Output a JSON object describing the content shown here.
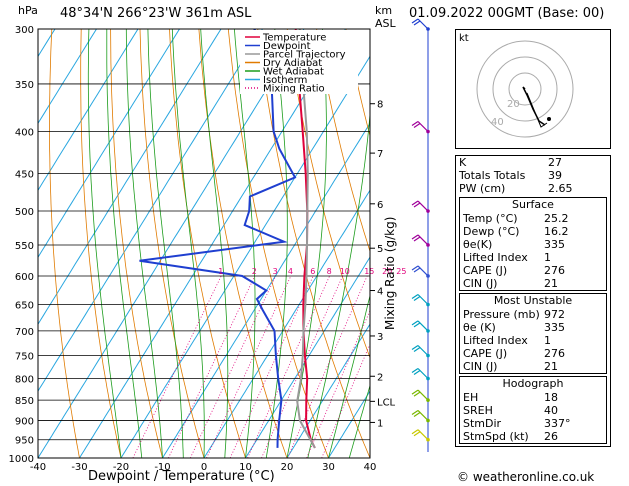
{
  "header": {
    "coords": "48°34'N  266°23'W  361m  ASL",
    "date": "01.09.2022  00GMT  (Base: 00)",
    "hpa_label": "hPa",
    "km_label_top": "km",
    "km_label_bottom": "ASL"
  },
  "chart_data": {
    "type": "line",
    "xlabel": "Dewpoint / Temperature (°C)",
    "ylabel_right": "Mixing Ratio (g/kg)",
    "ylabel_left": "hPa",
    "pressure_ticks": [
      300,
      350,
      400,
      450,
      500,
      550,
      600,
      650,
      700,
      750,
      800,
      850,
      900,
      950,
      1000
    ],
    "temperature_ticks": [
      -40,
      -30,
      -20,
      -10,
      0,
      10,
      20,
      30,
      40
    ],
    "xlim": [
      -40,
      40
    ],
    "ylim": [
      1000,
      300
    ],
    "km_ticks": [
      {
        "label": "8",
        "p": 370
      },
      {
        "label": "7",
        "p": 425
      },
      {
        "label": "6",
        "p": 490
      },
      {
        "label": "5",
        "p": 555
      },
      {
        "label": "4",
        "p": 625
      },
      {
        "label": "3",
        "p": 710
      },
      {
        "label": "2",
        "p": 795
      },
      {
        "label": "LCL",
        "p": 853
      },
      {
        "label": "1",
        "p": 905
      }
    ],
    "mixing_ratio_labels": [
      "1",
      "2",
      "3",
      "4",
      "6",
      "8",
      "10",
      "15",
      "20",
      "25"
    ],
    "legend": [
      "Temperature",
      "Dewpoint",
      "Parcel Trajectory",
      "Dry Adiabat",
      "Wet Adiabat",
      "Isotherm",
      "Mixing Ratio"
    ],
    "series": [
      {
        "name": "Temperature",
        "points": [
          [
            972,
            25.2
          ],
          [
            950,
            23.0
          ],
          [
            900,
            19.0
          ],
          [
            850,
            16.0
          ],
          [
            800,
            13.0
          ],
          [
            750,
            9.0
          ],
          [
            700,
            5.0
          ],
          [
            650,
            1.0
          ],
          [
            600,
            -3.0
          ],
          [
            550,
            -7.0
          ],
          [
            500,
            -12.0
          ],
          [
            450,
            -18.0
          ],
          [
            400,
            -25.0
          ],
          [
            350,
            -33.0
          ],
          [
            300,
            -42.0
          ]
        ]
      },
      {
        "name": "Dewpoint",
        "points": [
          [
            972,
            16.2
          ],
          [
            950,
            15.0
          ],
          [
            900,
            12.5
          ],
          [
            850,
            10.0
          ],
          [
            800,
            6.0
          ],
          [
            750,
            2.0
          ],
          [
            700,
            -2.0
          ],
          [
            660,
            -8.0
          ],
          [
            640,
            -11.0
          ],
          [
            625,
            -10.0
          ],
          [
            600,
            -18.0
          ],
          [
            575,
            -45.0
          ],
          [
            545,
            -13.0
          ],
          [
            520,
            -25.0
          ],
          [
            500,
            -26.0
          ],
          [
            480,
            -28.0
          ],
          [
            455,
            -20.0
          ],
          [
            420,
            -28.0
          ],
          [
            400,
            -32.0
          ],
          [
            360,
            -38.0
          ],
          [
            330,
            -42.0
          ],
          [
            300,
            -52.0
          ]
        ]
      },
      {
        "name": "Parcel Trajectory",
        "points": [
          [
            972,
            25.2
          ],
          [
            900,
            17.5
          ],
          [
            853,
            14.0
          ],
          [
            800,
            11.5
          ],
          [
            750,
            8.5
          ],
          [
            700,
            5.0
          ],
          [
            650,
            1.5
          ],
          [
            600,
            -2.5
          ],
          [
            550,
            -7.0
          ],
          [
            500,
            -12.0
          ],
          [
            450,
            -17.5
          ],
          [
            400,
            -24.0
          ],
          [
            350,
            -32.0
          ],
          [
            300,
            -41.0
          ]
        ]
      }
    ]
  },
  "hodograph": {
    "unit_label": "kt",
    "ring_labels": [
      "20",
      "40"
    ]
  },
  "indices": {
    "k_label": "K",
    "k_value": "27",
    "tt_label": "Totals Totals",
    "tt_value": "39",
    "pw_label": "PW (cm)",
    "pw_value": "2.65"
  },
  "surface": {
    "title": "Surface",
    "rows": [
      {
        "label": "Temp (°C)",
        "value": "25.2"
      },
      {
        "label": "Dewp (°C)",
        "value": "16.2"
      },
      {
        "label": "θe(K)",
        "value": "335"
      },
      {
        "label": "Lifted Index",
        "value": "1"
      },
      {
        "label": "CAPE (J)",
        "value": "276"
      },
      {
        "label": "CIN (J)",
        "value": "21"
      }
    ]
  },
  "most_unstable": {
    "title": "Most Unstable",
    "rows": [
      {
        "label": "Pressure (mb)",
        "value": "972"
      },
      {
        "label": "θe (K)",
        "value": "335"
      },
      {
        "label": "Lifted Index",
        "value": "1"
      },
      {
        "label": "CAPE (J)",
        "value": "276"
      },
      {
        "label": "CIN (J)",
        "value": "21"
      }
    ]
  },
  "hodograph_table": {
    "title": "Hodograph",
    "rows": [
      {
        "label": "EH",
        "value": "18"
      },
      {
        "label": "SREH",
        "value": "40"
      },
      {
        "label": "StmDir",
        "value": "337°"
      },
      {
        "label": "StmSpd (kt)",
        "value": "26"
      }
    ]
  },
  "footer": {
    "copyright": "© weatheronline.co.uk"
  }
}
